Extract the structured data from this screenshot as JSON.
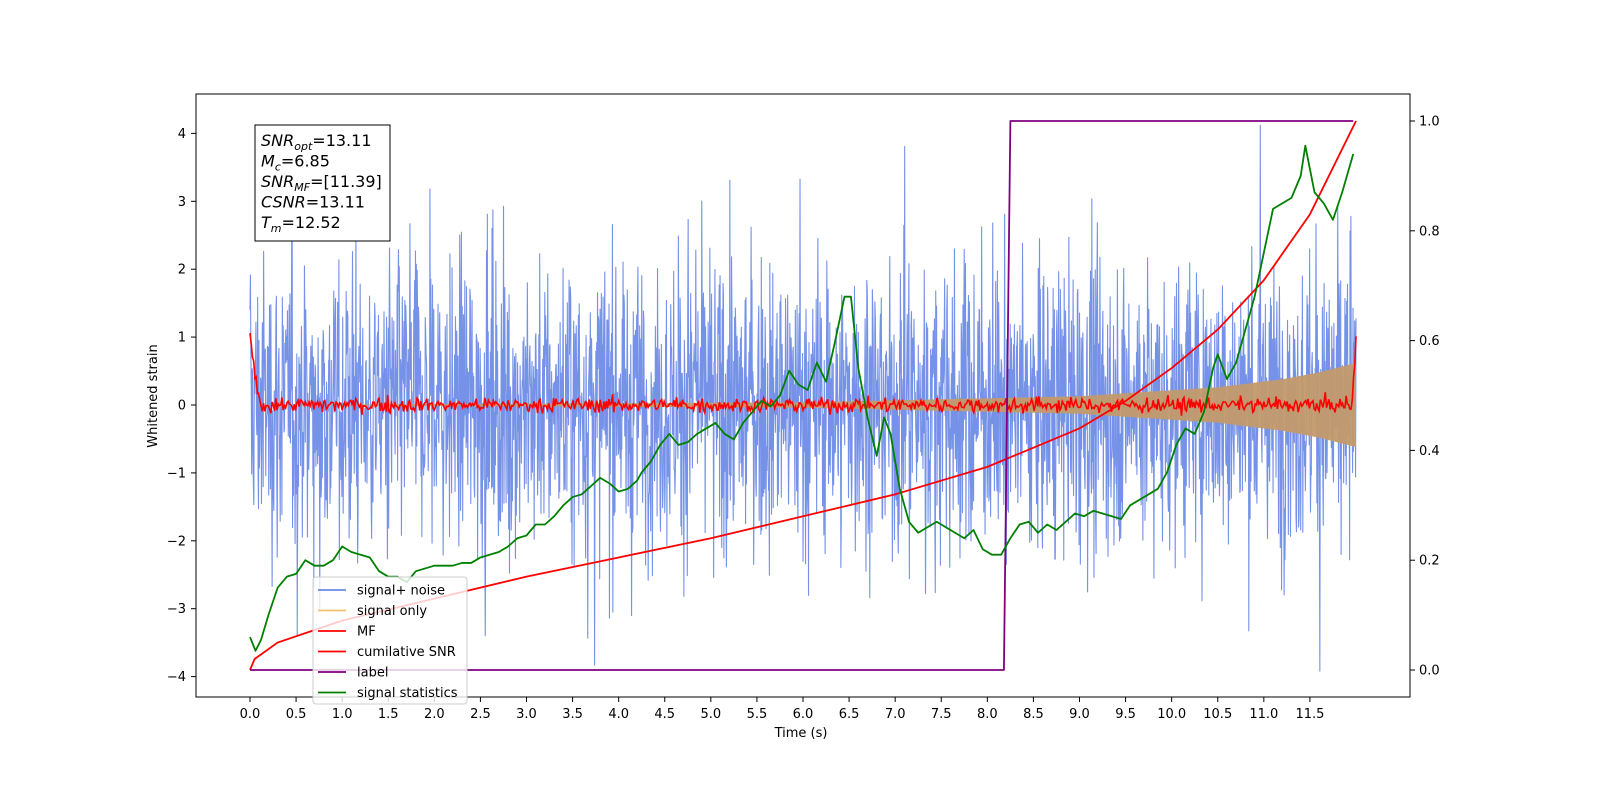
{
  "chart_data": {
    "type": "line",
    "xlabel": "Time (s)",
    "ylabel": "Whitened strain",
    "xlim": [
      -0.5,
      12.5
    ],
    "ylim": [
      -4.3,
      4.5
    ],
    "y2lim": [
      -0.05,
      1.04
    ],
    "xticks": [
      0.0,
      0.5,
      1.0,
      1.5,
      2.0,
      2.5,
      3.0,
      3.5,
      4.0,
      4.5,
      5.0,
      5.5,
      6.0,
      6.5,
      7.0,
      7.5,
      8.0,
      8.5,
      9.0,
      9.5,
      10.0,
      10.5,
      11.0,
      11.5
    ],
    "xtick_labels": [
      "0.0",
      "0.5",
      "1.0",
      "1.5",
      "2.0",
      "2.5",
      "3.0",
      "3.5",
      "4.0",
      "4.5",
      "5.0",
      "5.5",
      "6.0",
      "6.5",
      "7.0",
      "7.5",
      "8.0",
      "8.5",
      "9.0",
      "9.5",
      "10.0",
      "10.5",
      "11.0",
      "11.5"
    ],
    "yticks": [
      -4,
      -3,
      -2,
      -1,
      0,
      1,
      2,
      3,
      4
    ],
    "ytick_labels": [
      "−4",
      "−3",
      "−2",
      "−1",
      "0",
      "1",
      "2",
      "3",
      "4"
    ],
    "y2ticks": [
      0.0,
      0.2,
      0.4,
      0.6,
      0.8,
      1.0
    ],
    "y2tick_labels": [
      "0.0",
      "0.2",
      "0.4",
      "0.6",
      "0.8",
      "1.0"
    ],
    "annotation": {
      "lines": [
        {
          "base": "SNR",
          "sub": "opt",
          "value": "=13.11"
        },
        {
          "base": "M",
          "sub": "c",
          "value": "=6.85"
        },
        {
          "base": "SNR",
          "sub": "MF",
          "value": "=[11.39]"
        },
        {
          "base": "CSNR",
          "sub": "",
          "value": "=13.11"
        },
        {
          "base": "T",
          "sub": "m",
          "value": "=12.52"
        }
      ]
    },
    "legend": {
      "position": "lower-left",
      "entries": [
        {
          "label": "signal+ noise",
          "color": "#6a89e6"
        },
        {
          "label": "signal only",
          "color": "#f5c36b"
        },
        {
          "label": "MF",
          "color": "#ff0000"
        },
        {
          "label": "cumilative SNR",
          "color": "#ff0000"
        },
        {
          "label": "label",
          "color": "#800080"
        },
        {
          "label": "signal statistics",
          "color": "#008000"
        }
      ]
    },
    "series": [
      {
        "name": "signal+ noise",
        "axis": "left",
        "color": "#6a89e6",
        "description_type": "noise band",
        "x_range": [
          0.0,
          12.0
        ],
        "central_range": [
          -1.8,
          2.4
        ],
        "peak_values": [
          4.18,
          -3.92
        ]
      },
      {
        "name": "signal only",
        "axis": "left",
        "color": "#f5c36b",
        "x": [
          0.0,
          6.0,
          9.0,
          10.5,
          11.2,
          11.6,
          12.0
        ],
        "upper": [
          0.0,
          0.04,
          0.13,
          0.26,
          0.38,
          0.48,
          0.62
        ],
        "lower": [
          0.0,
          -0.04,
          -0.13,
          -0.26,
          -0.38,
          -0.48,
          -0.62
        ]
      },
      {
        "name": "MF",
        "axis": "left",
        "color": "#ff0000",
        "x": [
          0.0,
          0.02,
          0.05,
          0.1,
          11.9,
          11.97,
          12.0
        ],
        "y": [
          1.0,
          0.2,
          0.1,
          0.05,
          0.05,
          0.1,
          1.0
        ],
        "noise_amplitude": 0.1
      },
      {
        "name": "cumilative SNR",
        "axis": "right",
        "color": "#ff0000",
        "x": [
          0.0,
          0.05,
          0.3,
          1.0,
          2.0,
          3.0,
          4.0,
          5.0,
          6.0,
          7.0,
          8.0,
          8.5,
          9.0,
          9.5,
          10.0,
          10.5,
          11.0,
          11.5,
          12.0
        ],
        "y": [
          0.0,
          0.02,
          0.05,
          0.09,
          0.13,
          0.17,
          0.205,
          0.24,
          0.28,
          0.32,
          0.37,
          0.405,
          0.44,
          0.49,
          0.55,
          0.62,
          0.71,
          0.83,
          1.0
        ]
      },
      {
        "name": "label",
        "axis": "right",
        "color": "#800080",
        "x": [
          0.0,
          8.18,
          8.25,
          11.97
        ],
        "y": [
          0.0,
          0.0,
          1.0,
          1.0
        ]
      },
      {
        "name": "signal statistics",
        "axis": "right",
        "color": "#008000",
        "x": [
          0.0,
          0.06,
          0.12,
          0.2,
          0.3,
          0.4,
          0.5,
          0.6,
          0.7,
          0.8,
          0.9,
          1.0,
          1.1,
          1.2,
          1.3,
          1.4,
          1.5,
          1.6,
          1.7,
          1.8,
          1.9,
          2.0,
          2.1,
          2.2,
          2.3,
          2.4,
          2.5,
          2.6,
          2.7,
          2.8,
          2.9,
          3.0,
          3.1,
          3.2,
          3.3,
          3.4,
          3.5,
          3.6,
          3.7,
          3.8,
          3.9,
          4.0,
          4.1,
          4.2,
          4.25,
          4.35,
          4.45,
          4.55,
          4.65,
          4.75,
          4.85,
          4.95,
          5.05,
          5.15,
          5.25,
          5.35,
          5.45,
          5.55,
          5.65,
          5.75,
          5.85,
          5.95,
          6.05,
          6.15,
          6.25,
          6.35,
          6.45,
          6.52,
          6.6,
          6.7,
          6.8,
          6.88,
          6.95,
          7.05,
          7.15,
          7.25,
          7.35,
          7.45,
          7.55,
          7.65,
          7.75,
          7.85,
          7.95,
          8.05,
          8.15,
          8.25,
          8.35,
          8.45,
          8.55,
          8.65,
          8.75,
          8.85,
          8.95,
          9.05,
          9.15,
          9.25,
          9.35,
          9.45,
          9.55,
          9.65,
          9.75,
          9.85,
          9.95,
          10.05,
          10.15,
          10.25,
          10.35,
          10.45,
          10.5,
          10.6,
          10.7,
          10.8,
          10.9,
          11.0,
          11.1,
          11.2,
          11.3,
          11.4,
          11.45,
          11.55,
          11.65,
          11.75,
          11.85,
          11.97
        ],
        "y": [
          0.06,
          0.035,
          0.055,
          0.1,
          0.15,
          0.17,
          0.175,
          0.2,
          0.19,
          0.19,
          0.2,
          0.225,
          0.215,
          0.21,
          0.205,
          0.18,
          0.17,
          0.17,
          0.16,
          0.18,
          0.185,
          0.19,
          0.19,
          0.19,
          0.195,
          0.195,
          0.205,
          0.21,
          0.215,
          0.225,
          0.24,
          0.245,
          0.265,
          0.265,
          0.28,
          0.3,
          0.315,
          0.32,
          0.335,
          0.35,
          0.34,
          0.325,
          0.33,
          0.345,
          0.36,
          0.38,
          0.41,
          0.43,
          0.41,
          0.415,
          0.43,
          0.44,
          0.45,
          0.43,
          0.42,
          0.45,
          0.47,
          0.49,
          0.48,
          0.5,
          0.545,
          0.52,
          0.51,
          0.56,
          0.525,
          0.6,
          0.68,
          0.68,
          0.55,
          0.46,
          0.39,
          0.46,
          0.43,
          0.33,
          0.27,
          0.25,
          0.26,
          0.27,
          0.26,
          0.25,
          0.24,
          0.255,
          0.22,
          0.21,
          0.21,
          0.24,
          0.265,
          0.27,
          0.25,
          0.265,
          0.255,
          0.27,
          0.285,
          0.28,
          0.29,
          0.285,
          0.28,
          0.275,
          0.3,
          0.31,
          0.32,
          0.33,
          0.36,
          0.41,
          0.44,
          0.43,
          0.47,
          0.55,
          0.575,
          0.53,
          0.56,
          0.62,
          0.68,
          0.76,
          0.84,
          0.85,
          0.86,
          0.9,
          0.955,
          0.87,
          0.85,
          0.82,
          0.87,
          0.94
        ]
      }
    ]
  }
}
